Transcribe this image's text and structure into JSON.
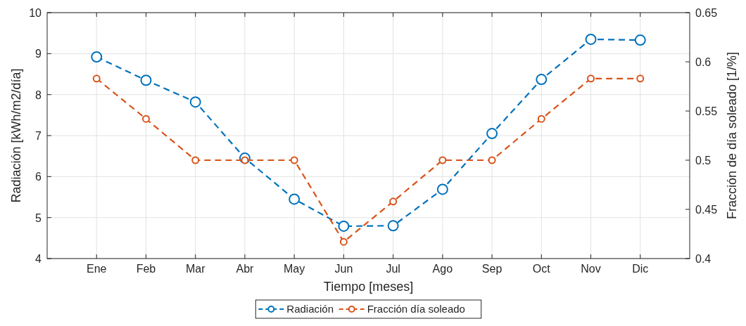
{
  "chart_data": {
    "type": "line",
    "xlabel": "Tiempo [meses]",
    "ylabel": "Radiación [kWh/m2/día]",
    "y2label": "Fracción de día soleado [1/%]",
    "categories": [
      "Ene",
      "Feb",
      "Mar",
      "Abr",
      "May",
      "Jun",
      "Jul",
      "Ago",
      "Sep",
      "Oct",
      "Nov",
      "Dic"
    ],
    "series": [
      {
        "name": "Radiación",
        "color": "#0072bd",
        "values": [
          8.92,
          8.35,
          7.82,
          6.45,
          5.45,
          4.79,
          4.8,
          5.69,
          7.05,
          8.37,
          9.35,
          9.33
        ]
      },
      {
        "name": "Fracción día soleado",
        "color": "#d95319",
        "axis": "y2",
        "values": [
          0.583,
          0.542,
          0.5,
          0.5,
          0.5,
          0.417,
          0.458,
          0.5,
          0.5,
          0.542,
          0.583,
          0.583
        ]
      }
    ],
    "ylim": [
      4,
      10
    ],
    "yticks": [
      4,
      5,
      6,
      7,
      8,
      9,
      10
    ],
    "y2lim": [
      0.4,
      0.65
    ],
    "y2ticks": [
      {
        "value": 0.4,
        "label": "0.4"
      },
      {
        "value": 0.45,
        "label": "0.45"
      },
      {
        "value": 0.5,
        "label": "0.5"
      },
      {
        "value": 0.55,
        "label": "0.55"
      },
      {
        "value": 0.6,
        "label": "0.6"
      },
      {
        "value": 0.65,
        "label": "0.65"
      }
    ],
    "grid": true,
    "legend": "bottom",
    "marker": "circle",
    "line_style": "dashed"
  }
}
